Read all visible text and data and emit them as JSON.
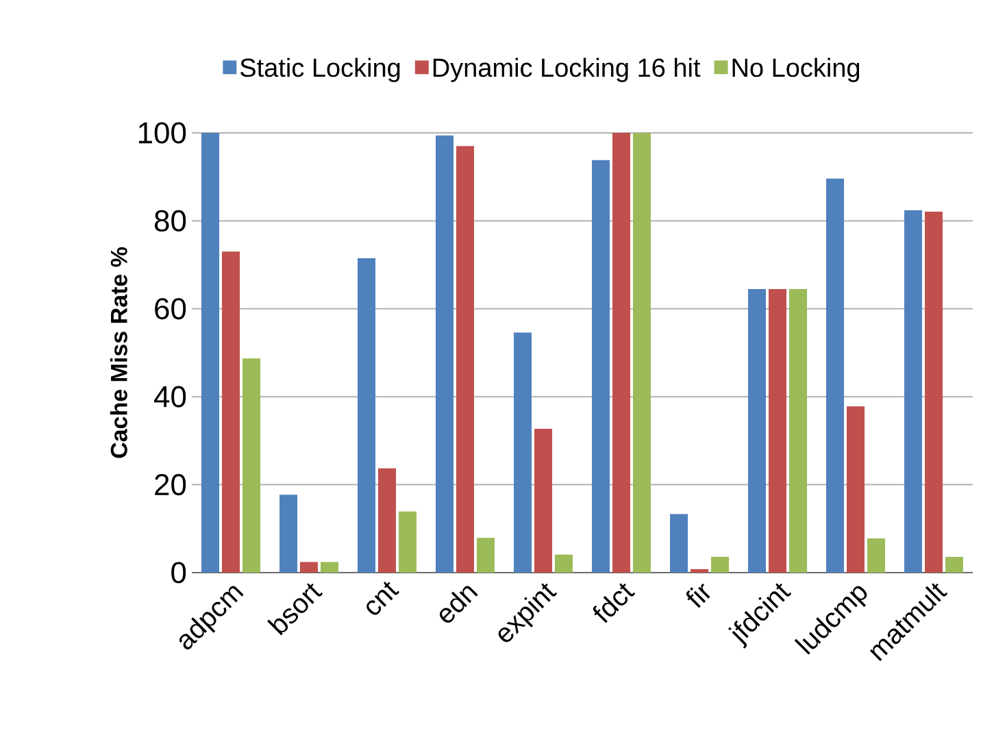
{
  "chart_data": {
    "type": "bar",
    "ylabel": "Cache Miss Rate %",
    "categories": [
      "adpcm",
      "bsort",
      "cnt",
      "edn",
      "expint",
      "fdct",
      "fir",
      "jfdcint",
      "ludcmp",
      "matmult"
    ],
    "series": [
      {
        "name": "Static Locking",
        "color": "#4f81bd",
        "values": [
          100,
          17.7,
          71.5,
          99.4,
          54.6,
          93.8,
          13.3,
          64.5,
          89.6,
          82.4
        ]
      },
      {
        "name": "Dynamic Locking 16 hit",
        "color": "#c0504d",
        "values": [
          73,
          2.4,
          23.7,
          97,
          32.7,
          100,
          0.8,
          64.5,
          37.8,
          82.1
        ]
      },
      {
        "name": "No Locking",
        "color": "#9bbb59",
        "values": [
          48.7,
          2.4,
          13.9,
          7.9,
          4.1,
          100,
          3.6,
          64.5,
          7.8,
          3.6
        ]
      }
    ],
    "ylim": [
      0,
      100
    ],
    "yticks": [
      0,
      20,
      40,
      60,
      80,
      100
    ],
    "grid": "y",
    "legend": "top"
  }
}
